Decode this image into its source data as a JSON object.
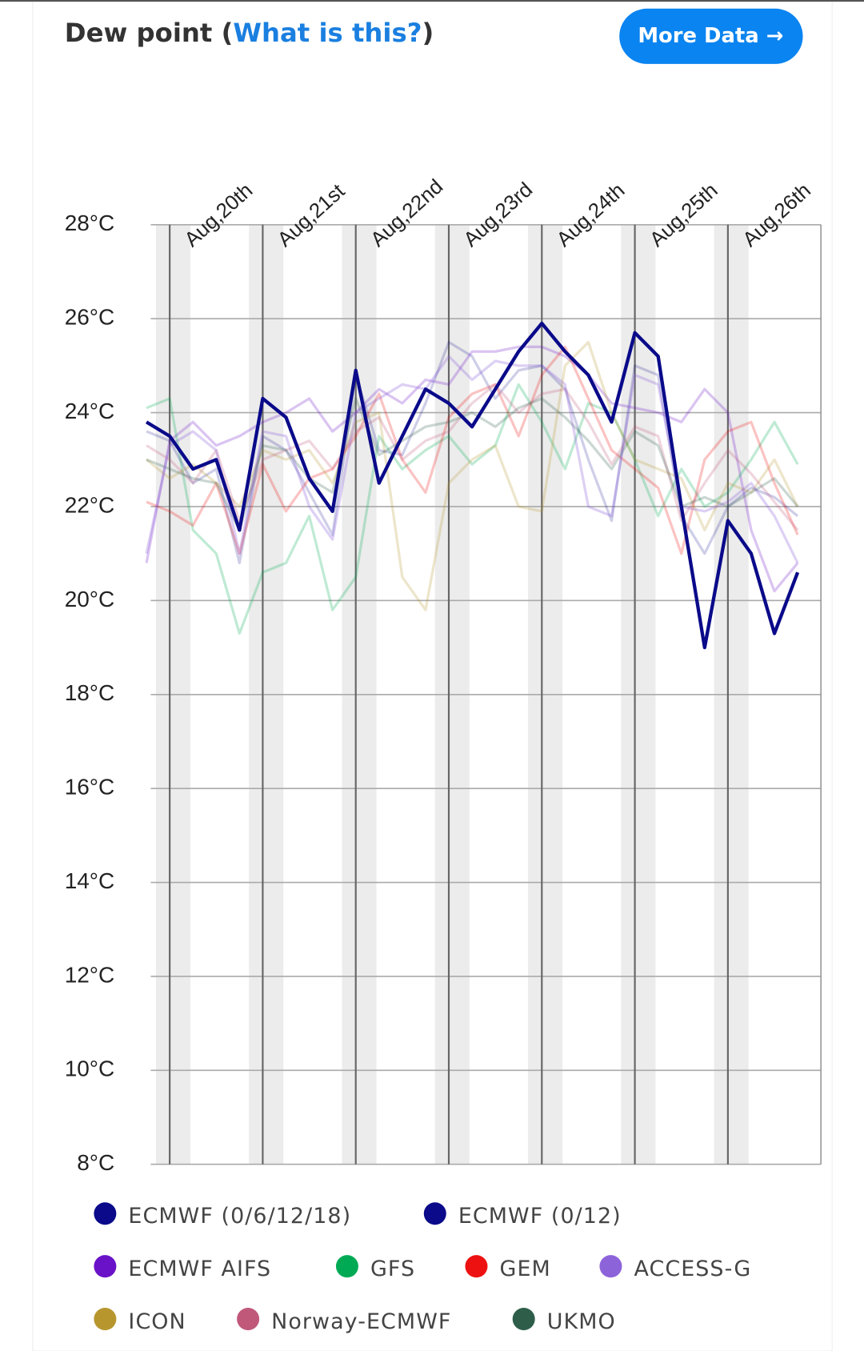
{
  "title_prefix": "Dew point (",
  "title_link": "What is this?",
  "title_suffix": ")",
  "button": "More Data →",
  "chart_data": {
    "type": "line",
    "categories": [
      null,
      "Aug,20th",
      null,
      null,
      null,
      "Aug,21st",
      null,
      null,
      null,
      "Aug,22nd",
      null,
      null,
      null,
      "Aug,23rd",
      null,
      null,
      null,
      "Aug,24th",
      null,
      null,
      null,
      "Aug,25th",
      null,
      null,
      null,
      "Aug,26th",
      null,
      null,
      null
    ],
    "ylim": [
      8,
      28
    ],
    "yticks": [
      {
        "value": 8,
        "label": "8°C"
      },
      {
        "value": 10,
        "label": "10°C"
      },
      {
        "value": 12,
        "label": "12°C"
      },
      {
        "value": 14,
        "label": "14°C"
      },
      {
        "value": 16,
        "label": "16°C"
      },
      {
        "value": 18,
        "label": "18°C"
      },
      {
        "value": 20,
        "label": "20°C"
      },
      {
        "value": 22,
        "label": "22°C"
      },
      {
        "value": 24,
        "label": "24°C"
      },
      {
        "value": 26,
        "label": "26°C"
      },
      {
        "value": 28,
        "label": "28°C"
      }
    ],
    "grid": true,
    "series": [
      {
        "name": "ECMWF (0/6/12/18)",
        "color": "#0a0a8a",
        "opacity": 1,
        "values": [
          23.8,
          23.5,
          22.8,
          23.0,
          21.5,
          24.3,
          23.9,
          22.6,
          21.9,
          24.9,
          22.5,
          23.5,
          24.5,
          24.2,
          23.7,
          24.5,
          25.3,
          25.9,
          25.3,
          24.8,
          23.8,
          25.7,
          25.2,
          22.0,
          19.0,
          21.7,
          21.0,
          19.3,
          20.6
        ]
      },
      {
        "name": "ECMWF (0/12)",
        "color": "#0a0a8a",
        "opacity": 0.2,
        "values": [
          23.6,
          23.4,
          22.5,
          22.8,
          20.8,
          23.5,
          23.2,
          22.3,
          21.4,
          24.8,
          23.2,
          23.1,
          24.2,
          25.5,
          25.2,
          24.3,
          24.9,
          25.0,
          24.5,
          23.0,
          21.7,
          25.0,
          24.8,
          21.8,
          21.0,
          22.0,
          22.4,
          22.2,
          21.8
        ]
      },
      {
        "name": "ECMWF AIFS",
        "color": "#6a12c8",
        "opacity": 0.25,
        "values": [
          20.8,
          23.4,
          23.8,
          23.3,
          23.5,
          23.8,
          24.0,
          24.3,
          23.6,
          24.0,
          24.5,
          24.2,
          24.7,
          24.6,
          25.3,
          25.3,
          25.4,
          25.4,
          25.2,
          24.8,
          24.2,
          24.1,
          24.0,
          23.8,
          24.5,
          24.0,
          21.5,
          20.2,
          20.8
        ]
      },
      {
        "name": "GFS",
        "color": "#00aa55",
        "opacity": 0.25,
        "values": [
          24.1,
          24.3,
          21.5,
          21.0,
          19.3,
          20.6,
          20.8,
          21.8,
          19.8,
          20.5,
          23.5,
          22.8,
          23.2,
          23.5,
          22.9,
          23.3,
          24.6,
          23.8,
          22.8,
          24.2,
          24.0,
          23.0,
          21.8,
          22.8,
          22.0,
          22.3,
          23.0,
          23.8,
          22.9
        ]
      },
      {
        "name": "GEM",
        "color": "#ee1111",
        "opacity": 0.25,
        "values": [
          22.1,
          21.9,
          21.6,
          22.5,
          21.0,
          22.9,
          21.9,
          22.6,
          22.8,
          23.5,
          24.4,
          23.0,
          22.3,
          23.9,
          24.4,
          24.6,
          23.5,
          24.8,
          25.4,
          24.3,
          23.2,
          22.8,
          22.4,
          21.0,
          23.0,
          23.6,
          23.8,
          22.5,
          21.4
        ]
      },
      {
        "name": "ACCESS-G",
        "color": "#8d63d9",
        "opacity": 0.3,
        "values": [
          21.0,
          23.3,
          23.6,
          23.2,
          21.0,
          23.6,
          23.5,
          22.0,
          21.3,
          24.0,
          24.3,
          24.6,
          24.5,
          25.2,
          24.7,
          25.1,
          25.0,
          25.0,
          24.6,
          22.0,
          21.8,
          24.8,
          24.6,
          22.0,
          21.9,
          22.1,
          22.5,
          21.8,
          20.8
        ]
      },
      {
        "name": "ICON",
        "color": "#b8962e",
        "opacity": 0.25,
        "values": [
          23.0,
          22.6,
          22.9,
          22.5,
          22.0,
          23.2,
          23.0,
          23.2,
          22.5,
          23.8,
          24.0,
          20.5,
          19.8,
          22.5,
          23.0,
          23.3,
          22.0,
          21.9,
          25.0,
          25.5,
          24.0,
          23.0,
          22.8,
          22.6,
          21.5,
          22.5,
          22.3,
          23.0,
          22.0
        ]
      },
      {
        "name": "Norway-ECMWF",
        "color": "#c0587a",
        "opacity": 0.25,
        "values": [
          23.3,
          23.0,
          22.5,
          23.2,
          21.7,
          23.0,
          23.2,
          23.4,
          22.8,
          23.6,
          23.9,
          23.0,
          23.4,
          23.6,
          24.2,
          24.6,
          24.0,
          24.4,
          24.5,
          23.8,
          22.9,
          23.7,
          23.5,
          21.7,
          22.5,
          23.2,
          22.7,
          22.1,
          21.5
        ]
      },
      {
        "name": "UKMO",
        "color": "#2e5e4a",
        "opacity": 0.25,
        "values": [
          23.0,
          22.8,
          22.6,
          22.5,
          21.5,
          23.3,
          23.2,
          22.6,
          22.3,
          24.3,
          23.1,
          23.4,
          23.7,
          23.8,
          24.0,
          23.7,
          24.1,
          24.3,
          23.9,
          23.4,
          22.8,
          23.6,
          23.3,
          22.0,
          22.2,
          22.0,
          22.3,
          22.6,
          22.0
        ]
      }
    ]
  }
}
